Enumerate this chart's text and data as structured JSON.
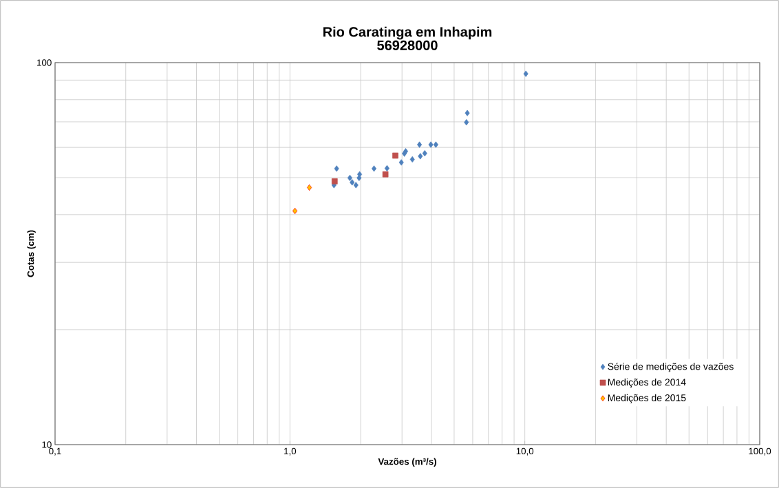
{
  "chart_data": {
    "type": "scatter",
    "title": "Rio Caratinga em Inhapim",
    "subtitle": "56928000",
    "xlabel": "Vazões (m³/s)",
    "ylabel": "Cotas (cm)",
    "log": "xy",
    "grid": true,
    "legend": "bottom right",
    "xlim": [
      0.1,
      100
    ],
    "ylim": [
      10,
      100
    ],
    "xticks": [
      {
        "value": 0.1,
        "label": "0,1"
      },
      {
        "value": 1,
        "label": "1,0"
      },
      {
        "value": 10,
        "label": "10,0"
      },
      {
        "value": 100,
        "label": "100,0"
      }
    ],
    "yticks": [
      10,
      100
    ],
    "series": [
      {
        "name": "Série de medições de vazões",
        "color": "#4f81bd",
        "marker": "diamond",
        "x": [
          1.58,
          1.54,
          1.8,
          1.84,
          1.91,
          1.97,
          1.98,
          2.28,
          2.59,
          2.98,
          3.07,
          3.11,
          3.32,
          3.56,
          3.59,
          3.75,
          3.98,
          4.18,
          10.1,
          5.69,
          5.64
        ],
        "values": [
          52.8,
          47.8,
          49.9,
          48.6,
          47.8,
          49.9,
          51.0,
          52.8,
          52.9,
          54.8,
          57.8,
          58.6,
          55.8,
          61.0,
          56.9,
          57.9,
          61.0,
          61.0,
          93.5,
          73.8,
          69.8
        ]
      },
      {
        "name": "Medições de 2014",
        "color": "#c0504d",
        "marker": "square",
        "x": [
          1.55,
          2.55,
          2.81
        ],
        "values": [
          48.9,
          51.0,
          57.1
        ]
      },
      {
        "name": "Medições de 2015",
        "color": "#ffc000",
        "marker": "diamond",
        "x": [
          1.21,
          1.05
        ],
        "values": [
          47.1,
          40.9
        ]
      }
    ]
  }
}
